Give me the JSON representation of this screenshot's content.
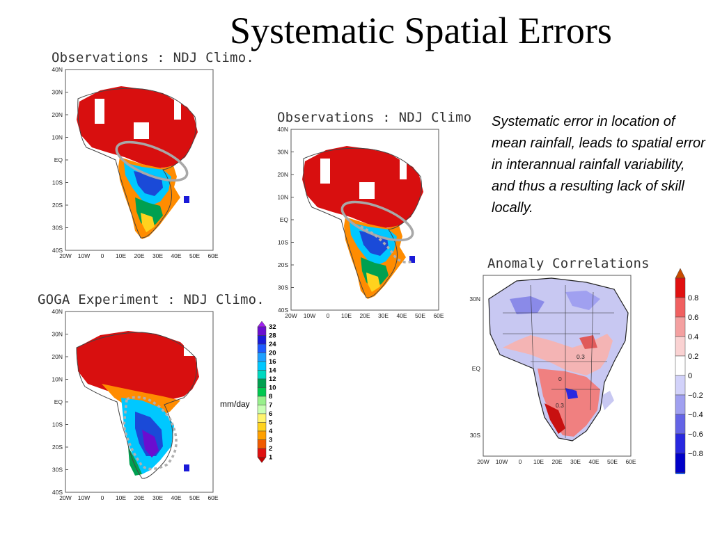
{
  "slide": {
    "title": "Systematic Spatial Errors"
  },
  "caption": "Systematic error in location of mean rainfall, leads to spatial error in interannual rainfall variability, and thus a resulting lack of skill locally.",
  "panels": {
    "obs_left": {
      "title": "Observations : NDJ Climo."
    },
    "goga": {
      "title": "GOGA Experiment : NDJ Climo."
    },
    "obs_right": {
      "title": "Observations : NDJ Climo"
    },
    "anomaly": {
      "title": "Anomaly Correlations"
    }
  },
  "axes": {
    "lat_ticks": [
      "40N",
      "30N",
      "20N",
      "10N",
      "EQ",
      "10S",
      "20S",
      "30S",
      "40S"
    ],
    "lon_ticks": [
      "20W",
      "10W",
      "0",
      "10E",
      "20E",
      "30E",
      "40E",
      "50E",
      "60E"
    ],
    "anomaly_lat_ticks": [
      "30N",
      "EQ",
      "30S"
    ]
  },
  "precip_colorbar": {
    "units": "mm/day",
    "levels": [
      "32",
      "28",
      "24",
      "20",
      "16",
      "14",
      "12",
      "10",
      "8",
      "7",
      "6",
      "5",
      "4",
      "3",
      "2",
      "1"
    ],
    "colors": [
      "#a020f0",
      "#6a0dd0",
      "#1a1ad8",
      "#1e5aff",
      "#1ea0ff",
      "#00c8ff",
      "#00d9c0",
      "#00a050",
      "#00c850",
      "#98f08c",
      "#c8ffb4",
      "#fff46e",
      "#ffd21e",
      "#ffa000",
      "#f05a00",
      "#e01010",
      "#c00000"
    ]
  },
  "corr_colorbar": {
    "levels": [
      "0.8",
      "0.6",
      "0.4",
      "0.2",
      "0",
      "−0.2",
      "−0.4",
      "−0.6",
      "−0.8"
    ],
    "colors": [
      "#c84b00",
      "#e01010",
      "#f06060",
      "#f4a0a0",
      "#fad2d2",
      "#ffffff",
      "#d2d2fa",
      "#a0a0f0",
      "#6464e6",
      "#2828e0",
      "#0000c8",
      "#1e64ff"
    ]
  },
  "map_annotations": {
    "contour_labels": [
      "0.3",
      "0.3",
      "0"
    ]
  }
}
